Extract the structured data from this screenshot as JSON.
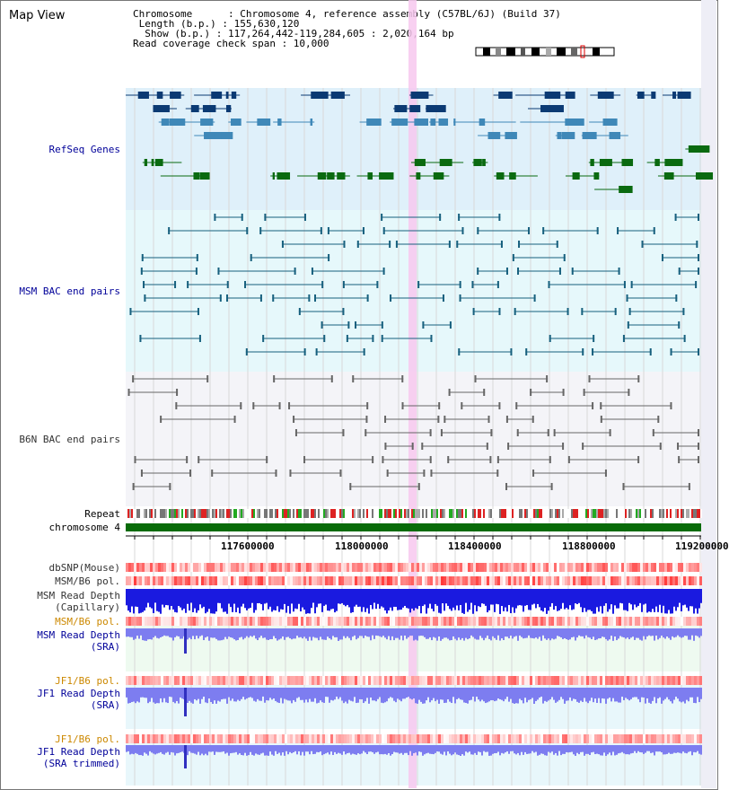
{
  "view_title": "Map View",
  "info": {
    "chromosome": "Chromosome      : Chromosome 4, reference assembly (C57BL/6J) (Build 37)",
    "length": " Length (b.p.) : 155,630,120",
    "show": "  Show (b.p.) : 117,264,442-119,284,605 : 2,020,164 bp",
    "coverage": "Read coverage check span : 10,000"
  },
  "tracks": {
    "refseq": "RefSeq Genes",
    "msm_bac": "MSM BAC end pairs",
    "b6n_bac": "B6N BAC end pairs",
    "repeat": "Repeat",
    "chromosome": "chromosome 4",
    "dbsnp": "dbSNP(Mouse)",
    "msm_b6_pol": "MSM/B6 pol.",
    "msm_depth_cap_1": "MSM Read Depth",
    "msm_depth_cap_2": "(Capillary)",
    "msm_b6_pol2": "MSM/B6 pol.",
    "msm_depth_sra_1": "MSM Read Depth",
    "msm_depth_sra_2": "(SRA)",
    "jf1_b6_pol": "JF1/B6 pol.",
    "jf1_depth_sra_1": "JF1 Read Depth",
    "jf1_depth_sra_2": "(SRA)",
    "jf1_b6_pol2": "JF1/B6 pol.",
    "jf1_depth_trim_1": "JF1 Read Depth",
    "jf1_depth_trim_2": "(SRA trimmed)"
  },
  "axis": {
    "ticks": [
      "117600000",
      "118000000",
      "118400000",
      "118800000",
      "119200000"
    ]
  },
  "colors": {
    "refseq_bg": "#dff0fa",
    "msm_bg": "#e6f8fb",
    "b6n_bg": "#f4f4f8",
    "gene_dark": "#0b3a73",
    "gene_mid": "#3f88b8",
    "gene_green": "#0a6a10",
    "msm_line": "#17607e",
    "b6n_line": "#666666",
    "highlight": "#f7c8ef",
    "chrom_bar": "#086b08",
    "depth_blue": "#1a1ae0",
    "depth_light": "#7d7df0"
  }
}
